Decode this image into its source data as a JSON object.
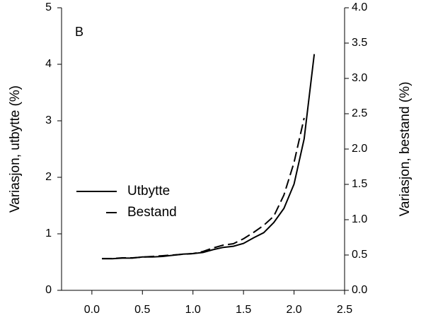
{
  "chart_data": {
    "type": "line",
    "panel_label": "B",
    "y_label": "Variasjon, utbytte (%)",
    "y2_label": "Variasjon, bestand (%)",
    "x": [
      0.1,
      0.2,
      0.3,
      0.4,
      0.5,
      0.6,
      0.7,
      0.8,
      0.9,
      1.0,
      1.1,
      1.2,
      1.3,
      1.4,
      1.5,
      1.6,
      1.7,
      1.8,
      1.9,
      2.0,
      2.1,
      2.2
    ],
    "series": [
      {
        "name": "Utbytte",
        "color": "#000000",
        "line_style": "solid",
        "values": [
          0.56,
          0.56,
          0.57,
          0.57,
          0.59,
          0.59,
          0.6,
          0.62,
          0.64,
          0.65,
          0.67,
          0.72,
          0.76,
          0.78,
          0.83,
          0.93,
          1.02,
          1.2,
          1.45,
          1.88,
          2.68,
          4.18
        ]
      },
      {
        "name": "Bestand",
        "color": "#000000",
        "line_style": "dashed",
        "axis": "y2",
        "values": [
          0.45,
          0.45,
          0.46,
          0.46,
          0.47,
          0.48,
          0.49,
          0.5,
          0.51,
          0.52,
          0.55,
          0.6,
          0.64,
          0.66,
          0.73,
          0.82,
          0.92,
          1.05,
          1.35,
          1.81,
          2.44,
          null
        ]
      }
    ],
    "xlim": [
      -0.3,
      2.5
    ],
    "xticks": [
      {
        "value": 0,
        "label": "0.0"
      },
      {
        "value": 0.5,
        "label": "0.5"
      },
      {
        "value": 1,
        "label": "1.0"
      },
      {
        "value": 1.5,
        "label": "1.5"
      },
      {
        "value": 2,
        "label": "2.0"
      },
      {
        "value": 2.5,
        "label": "2.5"
      }
    ],
    "ylim": [
      0,
      5
    ],
    "yticks": [
      0,
      1,
      2,
      3,
      4,
      5
    ],
    "y2lim": [
      0,
      4
    ],
    "y2ticks": [
      {
        "value": 0,
        "label": "0.0"
      },
      {
        "value": 0.5,
        "label": "0.5"
      },
      {
        "value": 1,
        "label": "1.0"
      },
      {
        "value": 1.5,
        "label": "1.5"
      },
      {
        "value": 2,
        "label": "2.0"
      },
      {
        "value": 2.5,
        "label": "2.5"
      },
      {
        "value": 3,
        "label": "3.0"
      },
      {
        "value": 3.5,
        "label": "3.5"
      },
      {
        "value": 4,
        "label": "4.0"
      }
    ]
  }
}
